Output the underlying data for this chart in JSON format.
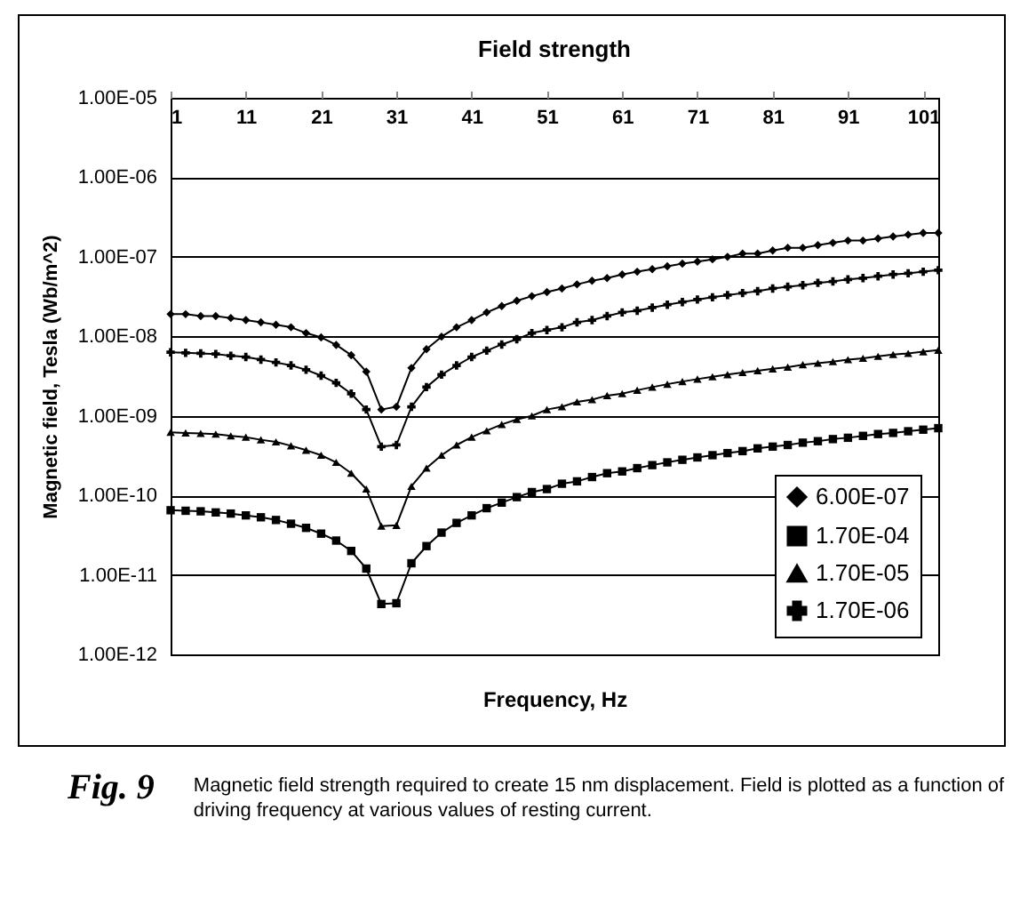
{
  "chart_data": {
    "type": "line",
    "title": "Field strength",
    "xlabel": "Frequency, Hz",
    "ylabel": "Magnetic field, Tesla (Wb/m^2)",
    "annotations": [
      "Fig. 9",
      "Magnetic field strength required to create 15 nm displacement.  Field is plotted as a function of driving frequency at various values of resting current."
    ],
    "x": [
      1,
      3,
      5,
      7,
      9,
      11,
      13,
      15,
      17,
      19,
      21,
      23,
      25,
      27,
      29,
      31,
      33,
      35,
      37,
      39,
      41,
      43,
      45,
      47,
      49,
      51,
      53,
      55,
      57,
      59,
      61,
      63,
      65,
      67,
      69,
      71,
      73,
      75,
      77,
      79,
      81,
      83,
      85,
      87,
      89,
      91,
      93,
      95,
      97,
      99,
      101,
      103
    ],
    "series": [
      {
        "name": "6.00E-07",
        "color": "#000000",
        "marker": "diamond",
        "values": [
          1.9e-08,
          1.9e-08,
          1.8e-08,
          1.8e-08,
          1.7e-08,
          1.6e-08,
          1.5e-08,
          1.4e-08,
          1.3e-08,
          1.1e-08,
          9.7e-09,
          7.8e-09,
          5.8e-09,
          3.6e-09,
          1.2e-09,
          1.3e-09,
          4e-09,
          6.9e-09,
          9.9e-09,
          1.3e-08,
          1.6e-08,
          2e-08,
          2.4e-08,
          2.8e-08,
          3.2e-08,
          3.6e-08,
          4e-08,
          4.5e-08,
          5e-08,
          5.4e-08,
          6e-08,
          6.5e-08,
          7e-08,
          7.6e-08,
          8.2e-08,
          8.7e-08,
          9.3e-08,
          1e-07,
          1.1e-07,
          1.1e-07,
          1.2e-07,
          1.3e-07,
          1.3e-07,
          1.4e-07,
          1.5e-07,
          1.6e-07,
          1.6e-07,
          1.7e-07,
          1.8e-07,
          1.9e-07,
          2e-07,
          2e-07
        ]
      },
      {
        "name": "1.70E-04",
        "color": "#000000",
        "marker": "square",
        "values": [
          6.5e-11,
          6.4e-11,
          6.3e-11,
          6.1e-11,
          5.9e-11,
          5.6e-11,
          5.3e-11,
          4.9e-11,
          4.4e-11,
          3.9e-11,
          3.3e-11,
          2.7e-11,
          2e-11,
          1.2e-11,
          4.3e-12,
          4.4e-12,
          1.4e-11,
          2.3e-11,
          3.4e-11,
          4.5e-11,
          5.6e-11,
          6.9e-11,
          8.1e-11,
          9.5e-11,
          1.1e-10,
          1.2e-10,
          1.4e-10,
          1.5e-10,
          1.7e-10,
          1.9e-10,
          2e-10,
          2.2e-10,
          2.4e-10,
          2.6e-10,
          2.8e-10,
          3e-10,
          3.2e-10,
          3.4e-10,
          3.6e-10,
          3.9e-10,
          4.1e-10,
          4.3e-10,
          4.6e-10,
          4.8e-10,
          5.1e-10,
          5.3e-10,
          5.6e-10,
          5.9e-10,
          6.1e-10,
          6.4e-10,
          6.7e-10,
          7e-10
        ]
      },
      {
        "name": "1.70E-05",
        "color": "#000000",
        "marker": "triangle",
        "values": [
          6.2e-10,
          6.1e-10,
          6e-10,
          5.9e-10,
          5.6e-10,
          5.4e-10,
          5e-10,
          4.7e-10,
          4.2e-10,
          3.7e-10,
          3.2e-10,
          2.6e-10,
          1.9e-10,
          1.2e-10,
          4.1e-11,
          4.2e-11,
          1.3e-10,
          2.2e-10,
          3.2e-10,
          4.3e-10,
          5.4e-10,
          6.5e-10,
          7.8e-10,
          9e-10,
          1e-09,
          1.2e-09,
          1.3e-09,
          1.5e-09,
          1.6e-09,
          1.8e-09,
          1.9e-09,
          2.1e-09,
          2.3e-09,
          2.5e-09,
          2.7e-09,
          2.9e-09,
          3.1e-09,
          3.3e-09,
          3.5e-09,
          3.7e-09,
          3.9e-09,
          4.1e-09,
          4.4e-09,
          4.6e-09,
          4.8e-09,
          5.1e-09,
          5.3e-09,
          5.6e-09,
          5.9e-09,
          6.1e-09,
          6.4e-09,
          6.7e-09
        ]
      },
      {
        "name": "1.70E-06",
        "color": "#000000",
        "marker": "cross",
        "values": [
          6.3e-09,
          6.2e-09,
          6.1e-09,
          6e-09,
          5.7e-09,
          5.5e-09,
          5.1e-09,
          4.7e-09,
          4.3e-09,
          3.8e-09,
          3.2e-09,
          2.6e-09,
          1.9e-09,
          1.2e-09,
          4.1e-10,
          4.3e-10,
          1.3e-09,
          2.3e-09,
          3.3e-09,
          4.3e-09,
          5.5e-09,
          6.6e-09,
          7.9e-09,
          9.2e-09,
          1.1e-08,
          1.2e-08,
          1.3e-08,
          1.5e-08,
          1.6e-08,
          1.8e-08,
          2e-08,
          2.1e-08,
          2.3e-08,
          2.5e-08,
          2.7e-08,
          2.9e-08,
          3.1e-08,
          3.3e-08,
          3.5e-08,
          3.7e-08,
          4e-08,
          4.2e-08,
          4.4e-08,
          4.7e-08,
          4.9e-08,
          5.2e-08,
          5.4e-08,
          5.7e-08,
          6e-08,
          6.2e-08,
          6.5e-08,
          6.8e-08
        ]
      }
    ],
    "log": "y",
    "xlim": [
      1,
      103
    ],
    "xticks": [
      1,
      11,
      21,
      31,
      41,
      51,
      61,
      71,
      81,
      91,
      101
    ],
    "ylim": [
      1e-12,
      1e-05
    ],
    "yticks": [
      {
        "value": 1e-12,
        "label": "1.00E-12"
      },
      {
        "value": 1e-11,
        "label": "1.00E-11"
      },
      {
        "value": 1e-10,
        "label": "1.00E-10"
      },
      {
        "value": 1e-09,
        "label": "1.00E-09"
      },
      {
        "value": 1e-08,
        "label": "1.00E-08"
      },
      {
        "value": 1e-07,
        "label": "1.00E-07"
      },
      {
        "value": 1e-06,
        "label": "1.00E-06"
      },
      {
        "value": 1e-05,
        "label": "1.00E-05"
      }
    ],
    "grid": "y",
    "legend": "bottom right"
  }
}
